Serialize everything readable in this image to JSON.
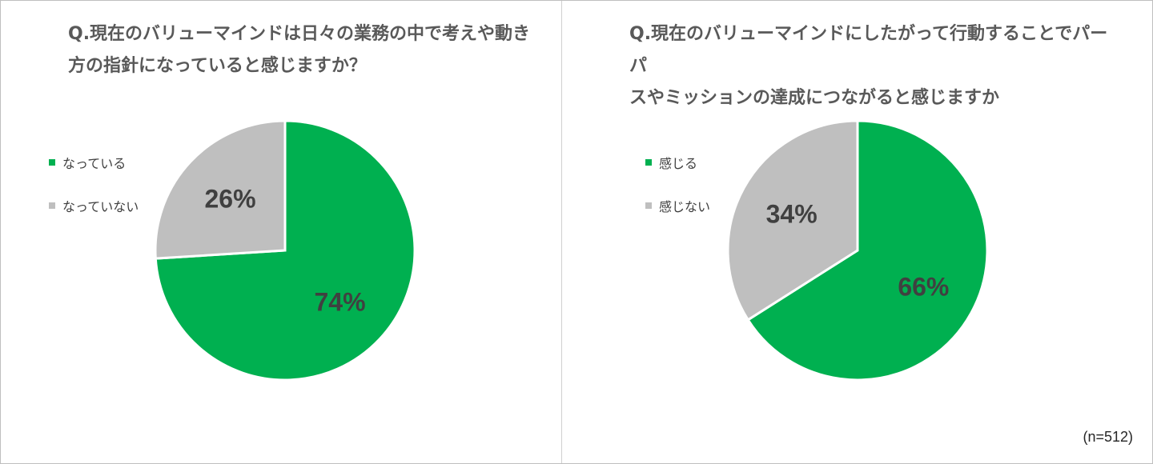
{
  "colors": {
    "green": "#00b050",
    "gray": "#bfbfbf",
    "label": "#404040"
  },
  "note": "(n=512)",
  "chart_data": [
    {
      "type": "pie",
      "title_lines": [
        "Q.現在のバリューマインドは日々の業務の中で考えや動き",
        "方の指針になっていると感じますか？"
      ],
      "slices": [
        {
          "label": "なっている",
          "value": 74,
          "display": "74%",
          "color": "#00b050"
        },
        {
          "label": "なっていない",
          "value": 26,
          "display": "26%",
          "color": "#bfbfbf"
        }
      ],
      "legend_position": "left"
    },
    {
      "type": "pie",
      "title_lines": [
        "Q.現在のバリューマインドにしたがって行動することでパーパ",
        "スやミッションの達成につながると感じますか"
      ],
      "slices": [
        {
          "label": "感じる",
          "value": 66,
          "display": "66%",
          "color": "#00b050"
        },
        {
          "label": "感じない",
          "value": 34,
          "display": "34%",
          "color": "#bfbfbf"
        }
      ],
      "legend_position": "left"
    }
  ]
}
